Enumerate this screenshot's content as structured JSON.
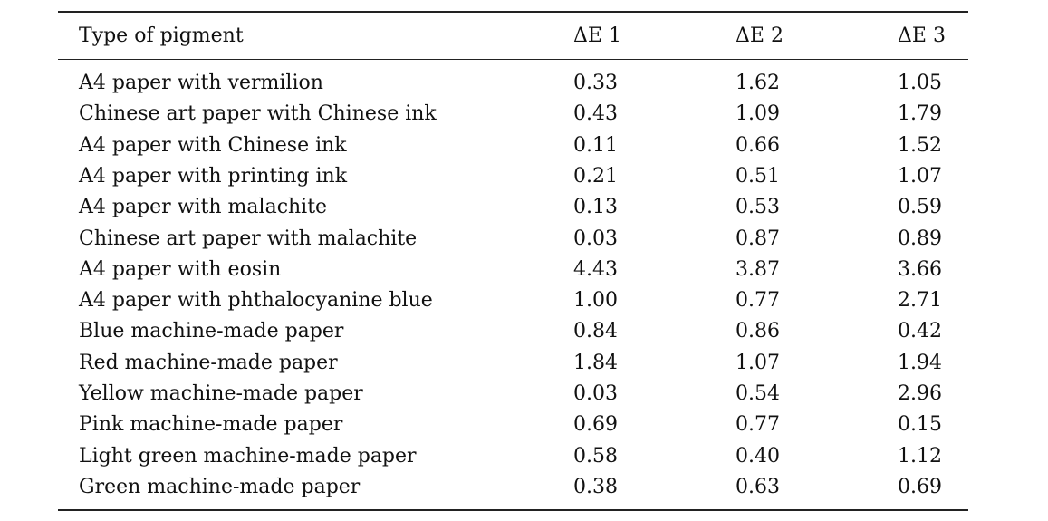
{
  "table": {
    "header": [
      "Type of pigment",
      "ΔE 1",
      "ΔE 2",
      "ΔE 3"
    ],
    "rows": [
      [
        "A4 paper with vermilion",
        "0.33",
        "1.62",
        "1.05"
      ],
      [
        "Chinese art paper with Chinese ink",
        "0.43",
        "1.09",
        "1.79"
      ],
      [
        "A4 paper with Chinese ink",
        "0.11",
        "0.66",
        "1.52"
      ],
      [
        "A4 paper with printing ink",
        "0.21",
        "0.51",
        "1.07"
      ],
      [
        "A4 paper with malachite",
        "0.13",
        "0.53",
        "0.59"
      ],
      [
        "Chinese art paper with malachite",
        "0.03",
        "0.87",
        "0.89"
      ],
      [
        "A4 paper with eosin",
        "4.43",
        "3.87",
        "3.66"
      ],
      [
        "A4 paper with phthalocyanine blue",
        "1.00",
        "0.77",
        "2.71"
      ],
      [
        "Blue machine-made paper",
        "0.84",
        "0.86",
        "0.42"
      ],
      [
        "Red machine-made paper",
        "1.84",
        "1.07",
        "1.94"
      ],
      [
        "Yellow machine-made paper",
        "0.03",
        "0.54",
        "2.96"
      ],
      [
        "Pink machine-made paper",
        "0.69",
        "0.77",
        "0.15"
      ],
      [
        "Light green machine-made paper",
        "0.58",
        "0.40",
        "1.12"
      ],
      [
        "Green machine-made paper",
        "0.38",
        "0.63",
        "0.69"
      ]
    ]
  }
}
